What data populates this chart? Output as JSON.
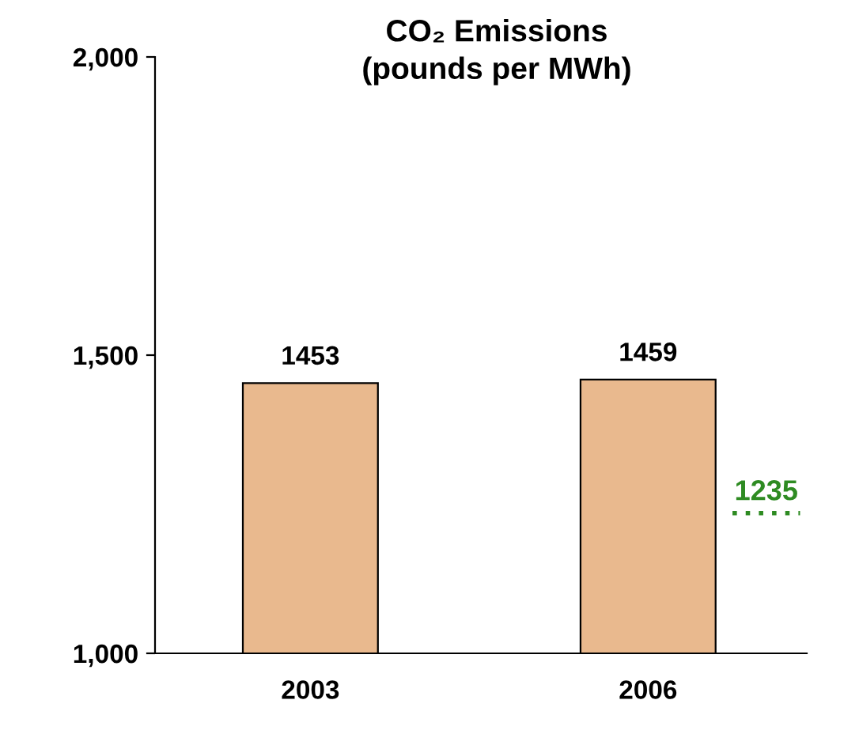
{
  "chart_data": {
    "type": "bar",
    "title": "CO₂ Emissions\n(pounds per MWh)",
    "categories": [
      "2003",
      "2006"
    ],
    "values": [
      1453,
      1459
    ],
    "color": "#e9b98e",
    "ylim": [
      1000,
      2000
    ],
    "yticks": [
      {
        "value": 1000,
        "label": "1,000"
      },
      {
        "value": 1500,
        "label": "1,500"
      },
      {
        "value": 2000,
        "label": "2,000"
      }
    ],
    "data_labels": true,
    "grid": false,
    "ref_lines": [
      {
        "axis": "y",
        "value": 1235,
        "label": "1235",
        "color": "#2e8b22",
        "line_style": "dotted"
      }
    ]
  }
}
